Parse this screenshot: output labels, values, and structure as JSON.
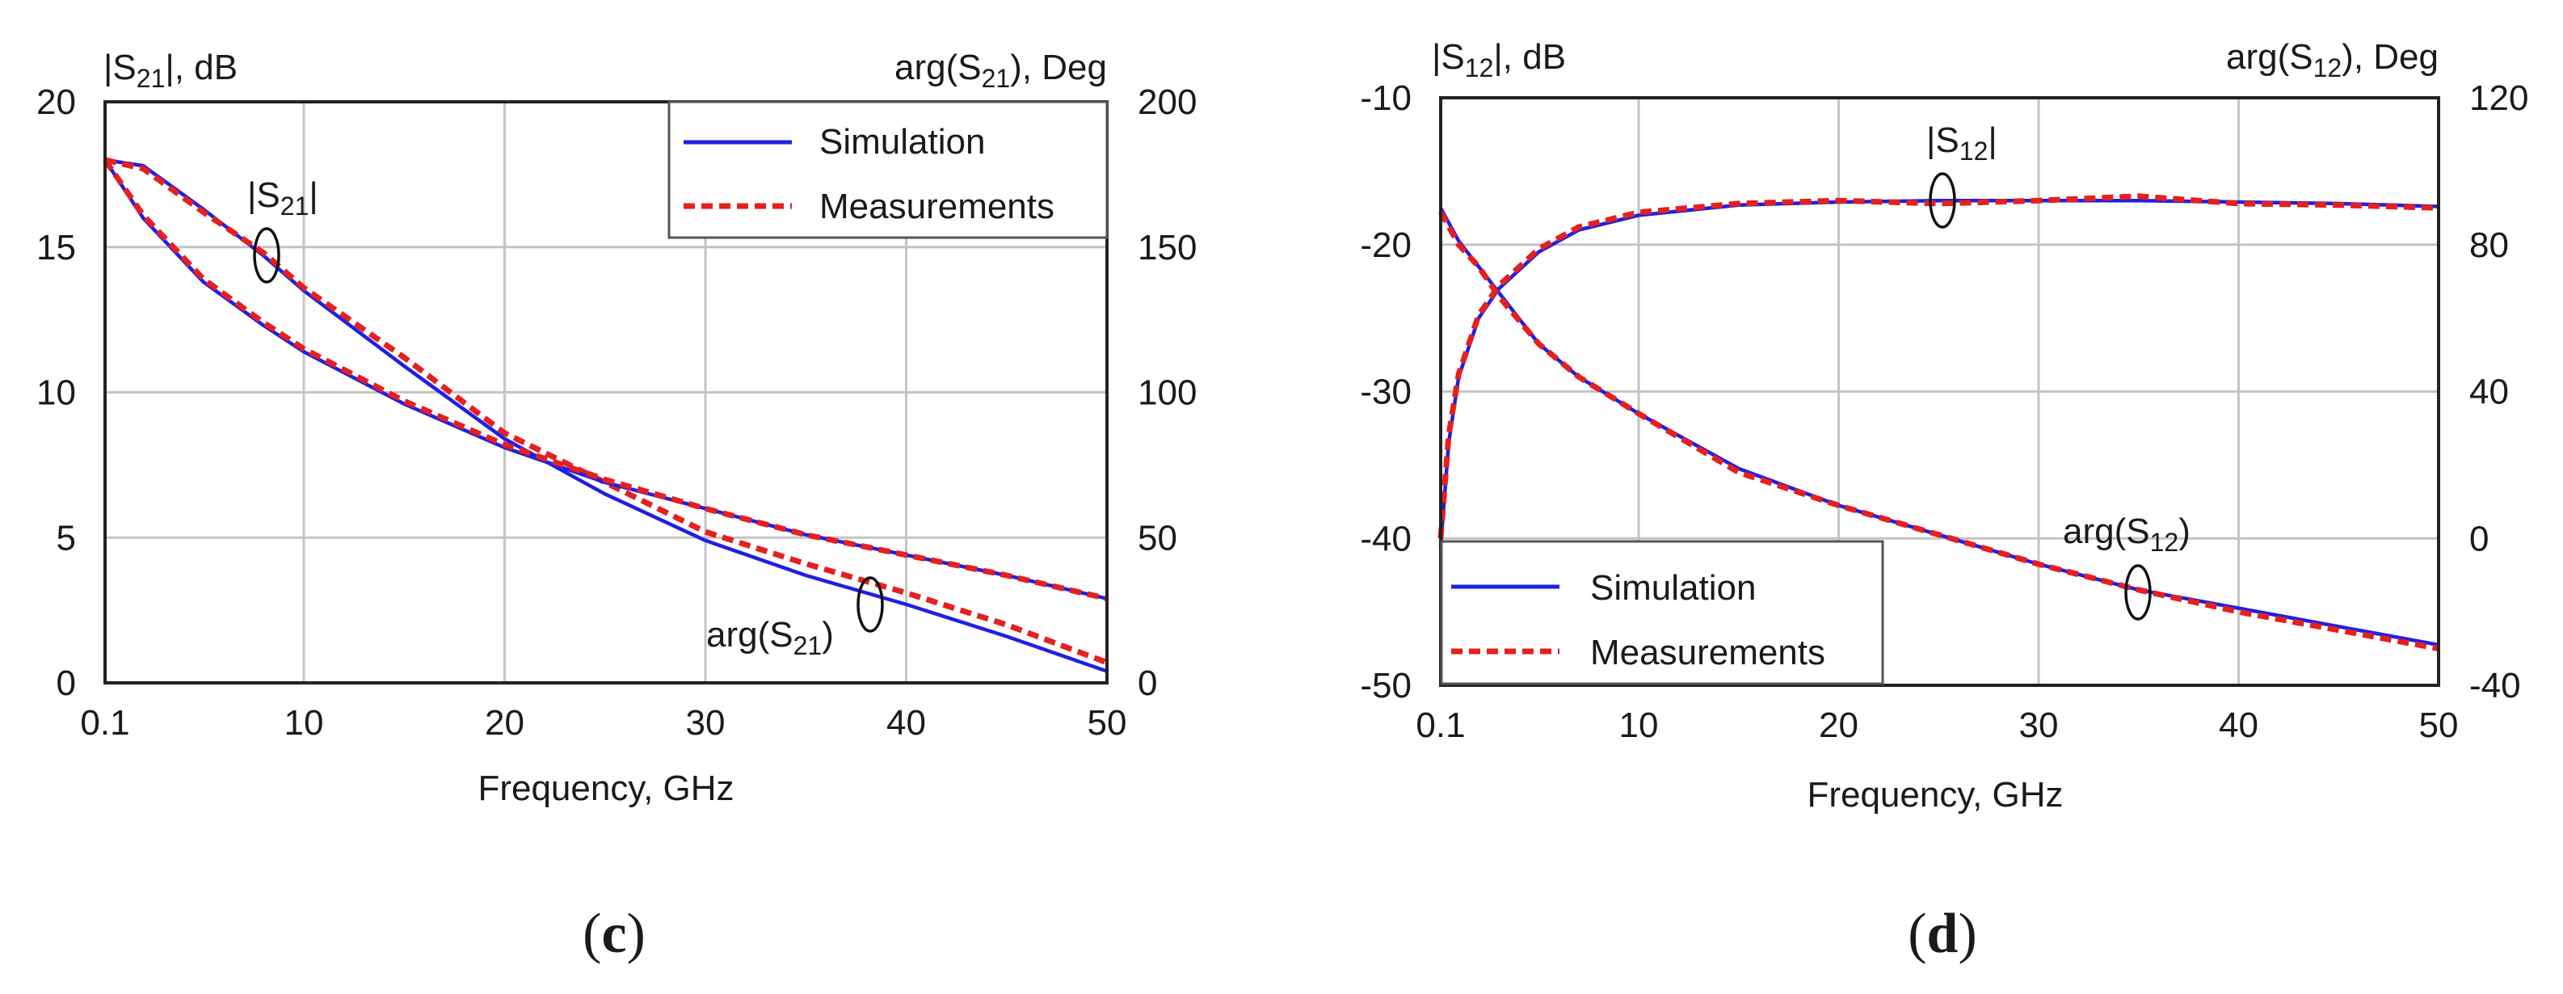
{
  "chart_data": [
    {
      "type": "line",
      "panel_label": "c",
      "xlabel": "Frequency, GHz",
      "x_ticks": [
        "0.1",
        "10",
        "20",
        "30",
        "40",
        "50"
      ],
      "x_tick_values": [
        0.1,
        10,
        20,
        30,
        40,
        50
      ],
      "xlim": [
        0.1,
        50
      ],
      "left_axis": {
        "title_prefix": "|S",
        "title_sub": "21",
        "title_suffix": "|, dB",
        "ylim": [
          0,
          20
        ],
        "ticks": [
          0,
          5,
          10,
          15,
          20
        ]
      },
      "right_axis": {
        "title_prefix": "arg(S",
        "title_sub": "21",
        "title_suffix": "), Deg",
        "ylim": [
          0,
          200
        ],
        "ticks": [
          0,
          50,
          100,
          150,
          200
        ]
      },
      "grid": true,
      "legend": {
        "position": "top-right",
        "entries": [
          "Simulation",
          "Measurements"
        ]
      },
      "annotations": [
        {
          "prefix": "|S",
          "sub": "21",
          "suffix": "|"
        },
        {
          "prefix": "arg(S",
          "sub": "21",
          "suffix": ")"
        }
      ],
      "series": [
        {
          "name": "Simulation",
          "quantity": "|S21|",
          "axis": "left",
          "color": "#1f1fe6",
          "x": [
            0.1,
            2,
            5,
            8,
            10,
            15,
            20,
            25,
            30,
            35,
            40,
            45,
            50
          ],
          "y": [
            18.0,
            17.8,
            16.3,
            14.7,
            13.5,
            10.9,
            8.4,
            6.5,
            4.9,
            3.7,
            2.7,
            1.6,
            0.4
          ]
        },
        {
          "name": "Measurements",
          "quantity": "|S21|",
          "axis": "left",
          "color": "#e61f1f",
          "x": [
            0.1,
            2,
            5,
            8,
            10,
            15,
            20,
            25,
            30,
            35,
            40,
            45,
            50
          ],
          "y": [
            18.0,
            17.7,
            16.2,
            14.8,
            13.6,
            11.2,
            8.6,
            6.9,
            5.2,
            4.1,
            3.1,
            2.0,
            0.7
          ]
        },
        {
          "name": "Simulation",
          "quantity": "arg(S21)",
          "axis": "right",
          "color": "#1f1fe6",
          "x": [
            0.1,
            2,
            5,
            8,
            10,
            15,
            20,
            25,
            30,
            35,
            40,
            45,
            50
          ],
          "y": [
            180,
            160,
            138,
            123,
            114,
            96,
            81,
            69,
            60,
            51,
            44,
            37,
            29
          ]
        },
        {
          "name": "Measurements",
          "quantity": "arg(S21)",
          "axis": "right",
          "color": "#e61f1f",
          "x": [
            0.1,
            2,
            5,
            8,
            10,
            15,
            20,
            25,
            30,
            35,
            40,
            45,
            50
          ],
          "y": [
            180,
            161,
            139,
            124,
            115,
            97,
            82,
            70,
            60,
            51,
            44,
            37,
            29
          ]
        }
      ]
    },
    {
      "type": "line",
      "panel_label": "d",
      "xlabel": "Frequency, GHz",
      "x_ticks": [
        "0.1",
        "10",
        "20",
        "30",
        "40",
        "50"
      ],
      "x_tick_values": [
        0.1,
        10,
        20,
        30,
        40,
        50
      ],
      "xlim": [
        0.1,
        50
      ],
      "left_axis": {
        "title_prefix": "|S",
        "title_sub": "12",
        "title_suffix": "|, dB",
        "ylim": [
          -50,
          -10
        ],
        "ticks": [
          -50,
          -40,
          -30,
          -20,
          -10
        ]
      },
      "right_axis": {
        "title_prefix": "arg(S",
        "title_sub": "12",
        "title_suffix": "), Deg",
        "ylim": [
          -40,
          120
        ],
        "ticks": [
          -40,
          0,
          40,
          80,
          120
        ]
      },
      "grid": true,
      "legend": {
        "position": "bottom-left",
        "entries": [
          "Simulation",
          "Measurements"
        ]
      },
      "annotations": [
        {
          "prefix": "|S",
          "sub": "12",
          "suffix": "|"
        },
        {
          "prefix": "arg(S",
          "sub": "12",
          "suffix": ")"
        }
      ],
      "series": [
        {
          "name": "Simulation",
          "quantity": "|S12|",
          "axis": "left",
          "color": "#1f1fe6",
          "x": [
            0.1,
            0.5,
            1,
            2,
            3,
            5,
            7,
            10,
            15,
            20,
            25,
            30,
            35,
            40,
            45,
            50
          ],
          "y": [
            -40.5,
            -33.5,
            -29.0,
            -25.0,
            -23.0,
            -20.5,
            -19.0,
            -18.0,
            -17.3,
            -17.1,
            -17.0,
            -17.0,
            -17.0,
            -17.1,
            -17.2,
            -17.4
          ]
        },
        {
          "name": "Measurements",
          "quantity": "|S12|",
          "axis": "left",
          "color": "#e61f1f",
          "x": [
            0.1,
            0.5,
            1,
            2,
            3,
            5,
            7,
            10,
            15,
            20,
            25,
            30,
            35,
            40,
            45,
            50
          ],
          "y": [
            -40.0,
            -33.0,
            -28.8,
            -24.8,
            -22.8,
            -20.3,
            -18.8,
            -17.8,
            -17.2,
            -17.0,
            -17.2,
            -17.0,
            -16.7,
            -17.2,
            -17.3,
            -17.5
          ]
        },
        {
          "name": "Simulation",
          "quantity": "arg(S12)",
          "axis": "right",
          "color": "#1f1fe6",
          "x": [
            0.1,
            1,
            2,
            3,
            5,
            7,
            10,
            15,
            20,
            25,
            30,
            35,
            40,
            45,
            50
          ],
          "y": [
            90,
            81,
            74,
            67,
            53,
            44,
            34,
            19,
            9,
            1,
            -7,
            -14,
            -19,
            -24,
            -29
          ]
        },
        {
          "name": "Measurements",
          "quantity": "arg(S12)",
          "axis": "right",
          "color": "#e61f1f",
          "x": [
            0.1,
            1,
            2,
            3,
            5,
            7,
            10,
            15,
            20,
            25,
            30,
            35,
            40,
            45,
            50
          ],
          "y": [
            89,
            80,
            74,
            66,
            53,
            44,
            34,
            18,
            9,
            1,
            -7,
            -14,
            -20,
            -25,
            -30
          ]
        }
      ]
    }
  ]
}
